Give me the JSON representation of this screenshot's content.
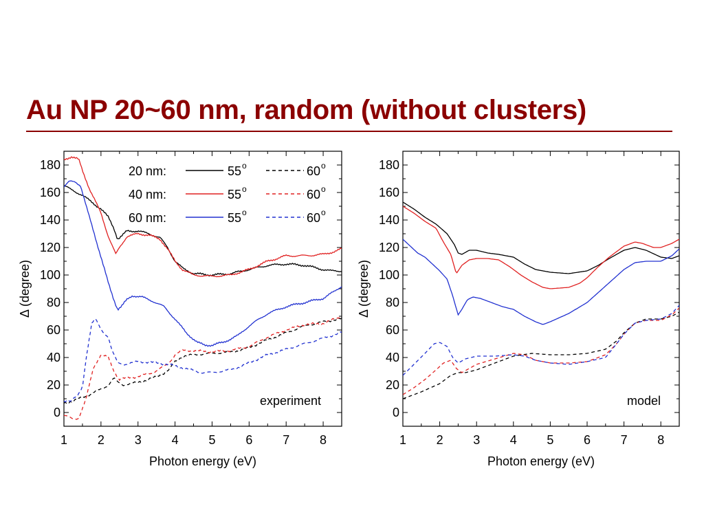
{
  "slide": {
    "title": "Au NP 20~60 nm, random (without clusters)",
    "title_color": "#8b0000"
  },
  "colors": {
    "20 nm": "#000000",
    "40 nm": "#e02020",
    "60 nm": "#2030d0"
  },
  "legend": {
    "rows": [
      {
        "label": "20 nm:",
        "color": "#000000",
        "solid_text": "55",
        "dashed_text": "60",
        "sup": "o"
      },
      {
        "label": "40 nm:",
        "color": "#e02020",
        "solid_text": "55",
        "dashed_text": "60",
        "sup": "o"
      },
      {
        "label": "60 nm:",
        "color": "#2030d0",
        "solid_text": "55",
        "dashed_text": "60",
        "sup": "o"
      }
    ]
  },
  "chart_data": [
    {
      "type": "line",
      "tag": "experiment",
      "xlabel": "Photon energy (eV)",
      "ylabel": "Δ (degree)",
      "xlim": [
        1,
        8.5
      ],
      "ylim": [
        -10,
        190
      ],
      "xticks": [
        1,
        2,
        3,
        4,
        5,
        6,
        7,
        8
      ],
      "yticks": [
        0,
        20,
        40,
        60,
        80,
        100,
        120,
        140,
        160,
        180
      ],
      "series": [
        {
          "size": "20 nm",
          "angle": "55",
          "color": "#000000",
          "dash": false,
          "noisy": true,
          "x": [
            1,
            1.2,
            1.5,
            1.8,
            2.0,
            2.2,
            2.35,
            2.45,
            2.55,
            2.7,
            3.0,
            3.3,
            3.6,
            3.8,
            4.0,
            4.2,
            4.5,
            5.0,
            5.5,
            6.0,
            6.5,
            7.0,
            7.5,
            8.0,
            8.2,
            8.5
          ],
          "y": [
            165,
            162,
            158,
            152,
            148,
            142,
            134,
            126,
            128,
            132,
            132,
            130,
            127,
            120,
            110,
            105,
            101,
            100,
            101,
            104,
            107,
            108,
            107,
            104,
            103,
            103
          ]
        },
        {
          "size": "40 nm",
          "angle": "55",
          "color": "#e02020",
          "dash": false,
          "noisy": true,
          "x": [
            1,
            1.2,
            1.4,
            1.5,
            1.7,
            2.0,
            2.2,
            2.4,
            2.5,
            2.7,
            3.0,
            3.3,
            3.6,
            3.8,
            4.0,
            4.2,
            4.5,
            5.0,
            5.5,
            6.0,
            6.5,
            7.0,
            7.5,
            8.0,
            8.3,
            8.5
          ],
          "y": [
            184,
            186,
            184,
            176,
            162,
            145,
            128,
            115,
            120,
            128,
            130,
            129,
            126,
            119,
            110,
            104,
            100,
            99,
            100,
            104,
            110,
            114,
            114,
            115,
            117,
            119
          ]
        },
        {
          "size": "60 nm",
          "angle": "55",
          "color": "#2030d0",
          "dash": false,
          "noisy": true,
          "x": [
            1,
            1.15,
            1.3,
            1.45,
            1.6,
            1.8,
            2.0,
            2.2,
            2.35,
            2.45,
            2.55,
            2.7,
            2.85,
            3.1,
            3.4,
            3.7,
            4.0,
            4.3,
            4.6,
            4.8,
            5.0,
            5.3,
            5.7,
            6.0,
            6.5,
            7.0,
            7.5,
            8.0,
            8.3,
            8.5
          ],
          "y": [
            164,
            168,
            168,
            165,
            150,
            132,
            113,
            94,
            82,
            75,
            77,
            82,
            85,
            84,
            81,
            77,
            68,
            58,
            51,
            49,
            49,
            51,
            56,
            63,
            72,
            77,
            80,
            83,
            88,
            92
          ]
        },
        {
          "size": "20 nm",
          "angle": "60",
          "color": "#000000",
          "dash": true,
          "noisy": true,
          "x": [
            1,
            1.3,
            1.7,
            2.0,
            2.2,
            2.35,
            2.45,
            2.6,
            3.0,
            3.5,
            3.8,
            4.0,
            4.2,
            4.5,
            5.0,
            5.5,
            6.0,
            6.5,
            7.0,
            7.5,
            8.0,
            8.5
          ],
          "y": [
            7,
            9,
            13,
            17,
            20,
            25,
            22,
            20,
            22,
            26,
            30,
            37,
            41,
            42,
            43,
            44,
            47,
            53,
            58,
            63,
            66,
            68
          ]
        },
        {
          "size": "40 nm",
          "angle": "60",
          "color": "#e02020",
          "dash": true,
          "noisy": true,
          "x": [
            1,
            1.1,
            1.25,
            1.4,
            1.6,
            1.8,
            2.0,
            2.2,
            2.35,
            2.5,
            2.7,
            3.0,
            3.4,
            3.8,
            4.0,
            4.2,
            4.5,
            5.0,
            5.5,
            6.0,
            6.5,
            7.0,
            7.5,
            8.0,
            8.5
          ],
          "y": [
            -2,
            -3,
            -5,
            -4,
            10,
            33,
            42,
            40,
            30,
            24,
            25,
            26,
            29,
            35,
            42,
            45,
            45,
            44,
            45,
            48,
            55,
            60,
            64,
            65,
            70
          ]
        },
        {
          "size": "60 nm",
          "angle": "60",
          "color": "#2030d0",
          "dash": true,
          "noisy": true,
          "x": [
            1,
            1.2,
            1.4,
            1.5,
            1.6,
            1.75,
            1.85,
            2.0,
            2.2,
            2.3,
            2.45,
            2.6,
            3.0,
            3.5,
            3.8,
            4.0,
            4.3,
            4.7,
            5.0,
            5.5,
            6.0,
            6.5,
            7.0,
            7.5,
            8.0,
            8.5
          ],
          "y": [
            8,
            9,
            13,
            18,
            40,
            65,
            68,
            60,
            55,
            45,
            36,
            35,
            37,
            36,
            35,
            34,
            32,
            29,
            29,
            31,
            36,
            42,
            46,
            50,
            54,
            58
          ]
        }
      ]
    },
    {
      "type": "line",
      "tag": "model",
      "xlabel": "Photon energy (eV)",
      "ylabel": "Δ (degree)",
      "xlim": [
        1,
        8.5
      ],
      "ylim": [
        -10,
        190
      ],
      "xticks": [
        1,
        2,
        3,
        4,
        5,
        6,
        7,
        8
      ],
      "yticks": [
        0,
        20,
        40,
        60,
        80,
        100,
        120,
        140,
        160,
        180
      ],
      "series": [
        {
          "size": "20 nm",
          "angle": "55",
          "color": "#000000",
          "dash": false,
          "noisy": false,
          "x": [
            1,
            1.3,
            1.6,
            1.9,
            2.2,
            2.4,
            2.5,
            2.6,
            2.8,
            3.0,
            3.3,
            3.6,
            4.0,
            4.3,
            4.6,
            5.0,
            5.5,
            6.0,
            6.3,
            6.6,
            7.0,
            7.3,
            7.6,
            8.0,
            8.3,
            8.5
          ],
          "y": [
            153,
            148,
            142,
            137,
            130,
            122,
            116,
            115,
            118,
            118,
            116,
            115,
            113,
            108,
            104,
            102,
            101,
            103,
            107,
            112,
            118,
            120,
            118,
            113,
            112,
            114
          ]
        },
        {
          "size": "40 nm",
          "angle": "55",
          "color": "#e02020",
          "dash": false,
          "noisy": false,
          "x": [
            1,
            1.3,
            1.6,
            1.9,
            2.1,
            2.3,
            2.45,
            2.6,
            2.8,
            3.0,
            3.3,
            3.6,
            3.9,
            4.2,
            4.5,
            4.8,
            5.0,
            5.5,
            5.8,
            6.0,
            6.3,
            6.6,
            7.0,
            7.3,
            7.5,
            7.8,
            8.0,
            8.3,
            8.5
          ],
          "y": [
            150,
            145,
            139,
            134,
            124,
            115,
            101,
            107,
            111,
            112,
            112,
            111,
            106,
            100,
            95,
            91,
            90,
            91,
            94,
            98,
            106,
            113,
            121,
            124,
            123,
            120,
            120,
            123,
            126
          ]
        },
        {
          "size": "60 nm",
          "angle": "55",
          "color": "#2030d0",
          "dash": false,
          "noisy": false,
          "x": [
            1,
            1.2,
            1.4,
            1.6,
            1.8,
            2.0,
            2.2,
            2.35,
            2.5,
            2.6,
            2.75,
            2.9,
            3.1,
            3.4,
            3.7,
            4.0,
            4.3,
            4.6,
            4.8,
            5.0,
            5.5,
            6.0,
            6.5,
            7.0,
            7.3,
            7.6,
            8.0,
            8.3,
            8.5
          ],
          "y": [
            126,
            121,
            116,
            113,
            108,
            103,
            97,
            85,
            71,
            75,
            82,
            84,
            83,
            80,
            77,
            75,
            70,
            66,
            64,
            66,
            72,
            80,
            92,
            104,
            109,
            110,
            110,
            114,
            119
          ]
        },
        {
          "size": "20 nm",
          "angle": "60",
          "color": "#000000",
          "dash": true,
          "noisy": false,
          "x": [
            1,
            1.5,
            2.0,
            2.3,
            2.5,
            2.7,
            3.0,
            3.5,
            4.0,
            4.5,
            5.0,
            5.5,
            6.0,
            6.5,
            6.8,
            7.0,
            7.3,
            7.6,
            8.0,
            8.3,
            8.5
          ],
          "y": [
            10,
            15,
            21,
            27,
            29,
            29,
            31,
            36,
            41,
            43,
            42,
            42,
            43,
            46,
            52,
            58,
            65,
            68,
            68,
            70,
            73
          ]
        },
        {
          "size": "40 nm",
          "angle": "60",
          "color": "#e02020",
          "dash": true,
          "noisy": false,
          "x": [
            1,
            1.3,
            1.6,
            1.9,
            2.1,
            2.3,
            2.45,
            2.6,
            2.8,
            3.0,
            3.5,
            4.0,
            4.3,
            4.6,
            5.0,
            5.5,
            6.0,
            6.5,
            6.8,
            7.0,
            7.3,
            7.6,
            8.0,
            8.3,
            8.5
          ],
          "y": [
            13,
            18,
            24,
            31,
            36,
            38,
            32,
            29,
            32,
            35,
            39,
            43,
            42,
            38,
            36,
            36,
            37,
            42,
            50,
            57,
            65,
            67,
            67,
            71,
            76
          ]
        },
        {
          "size": "60 nm",
          "angle": "60",
          "color": "#2030d0",
          "dash": true,
          "noisy": false,
          "x": [
            1,
            1.3,
            1.6,
            1.85,
            2.0,
            2.2,
            2.35,
            2.5,
            2.7,
            3.0,
            3.5,
            4.0,
            4.3,
            4.6,
            5.0,
            5.5,
            6.0,
            6.5,
            6.8,
            7.0,
            7.3,
            7.6,
            8.0,
            8.3,
            8.5
          ],
          "y": [
            27,
            35,
            43,
            50,
            51,
            48,
            40,
            36,
            39,
            41,
            41,
            42,
            41,
            38,
            36,
            35,
            37,
            40,
            50,
            57,
            65,
            67,
            68,
            72,
            78
          ]
        }
      ]
    }
  ]
}
